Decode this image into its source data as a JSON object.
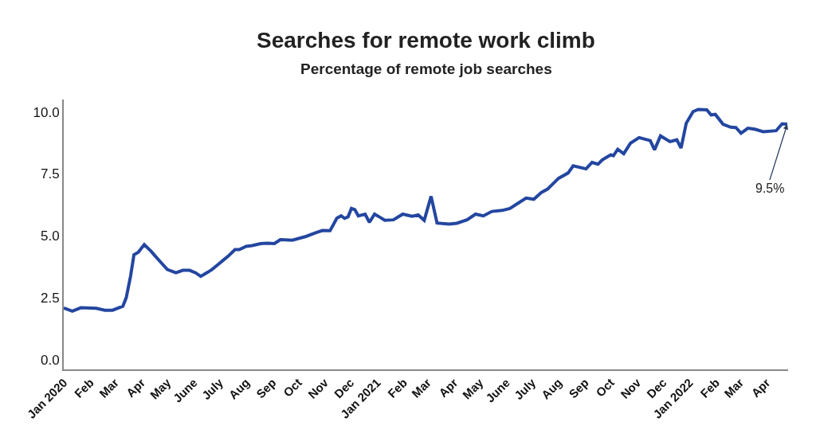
{
  "chart_data": {
    "type": "line",
    "title": "Searches for remote work climb",
    "subtitle": "Percentage of remote job searches",
    "x": [
      "2020-01-01",
      "2020-01-11",
      "2020-01-21",
      "2020-02-08",
      "2020-02-18",
      "2020-02-27",
      "2020-03-10",
      "2020-03-14",
      "2020-03-19",
      "2020-03-23",
      "2020-03-28",
      "2020-04-04",
      "2020-04-12",
      "2020-04-17",
      "2020-04-24",
      "2020-05-01",
      "2020-05-11",
      "2020-05-19",
      "2020-05-27",
      "2020-06-03",
      "2020-06-09",
      "2020-06-17",
      "2020-06-22",
      "2020-06-29",
      "2020-07-05",
      "2020-07-11",
      "2020-07-19",
      "2020-07-24",
      "2020-08-01",
      "2020-08-08",
      "2020-08-18",
      "2020-08-26",
      "2020-09-03",
      "2020-09-10",
      "2020-09-24",
      "2020-10-10",
      "2020-10-20",
      "2020-10-29",
      "2020-11-07",
      "2020-11-15",
      "2020-11-20",
      "2020-11-24",
      "2020-11-28",
      "2020-12-02",
      "2020-12-06",
      "2020-12-10",
      "2020-12-18",
      "2020-12-23",
      "2020-12-29",
      "2021-01-05",
      "2021-01-10",
      "2021-01-20",
      "2021-01-31",
      "2021-02-11",
      "2021-02-18",
      "2021-02-25",
      "2021-03-05",
      "2021-03-12",
      "2021-03-26",
      "2021-04-04",
      "2021-04-16",
      "2021-04-26",
      "2021-05-05",
      "2021-05-15",
      "2021-05-27",
      "2021-06-05",
      "2021-06-15",
      "2021-06-24",
      "2021-07-03",
      "2021-07-12",
      "2021-07-19",
      "2021-08-01",
      "2021-08-12",
      "2021-08-18",
      "2021-09-02",
      "2021-09-09",
      "2021-09-16",
      "2021-09-21",
      "2021-10-01",
      "2021-10-04",
      "2021-10-09",
      "2021-10-16",
      "2021-10-24",
      "2021-11-03",
      "2021-11-16",
      "2021-11-21",
      "2021-11-28",
      "2021-12-09",
      "2021-12-17",
      "2021-12-22",
      "2021-12-28",
      "2022-01-05",
      "2022-01-11",
      "2022-01-21",
      "2022-01-26",
      "2022-01-31",
      "2022-02-09",
      "2022-02-18",
      "2022-02-24",
      "2022-03-02",
      "2022-03-10",
      "2022-03-18",
      "2022-03-28",
      "2022-04-12",
      "2022-04-19",
      "2022-04-25"
    ],
    "series": [
      {
        "color": "#2346a0",
        "values": [
          2.08,
          1.95,
          2.09,
          2.07,
          1.99,
          1.99,
          2.15,
          2.5,
          3.36,
          4.23,
          4.33,
          4.64,
          4.37,
          4.17,
          3.9,
          3.63,
          3.5,
          3.6,
          3.6,
          3.5,
          3.36,
          3.52,
          3.63,
          3.83,
          4.0,
          4.17,
          4.44,
          4.44,
          4.57,
          4.6,
          4.68,
          4.7,
          4.68,
          4.84,
          4.82,
          4.97,
          5.1,
          5.21,
          5.2,
          5.71,
          5.8,
          5.7,
          5.76,
          6.1,
          6.05,
          5.8,
          5.87,
          5.54,
          5.87,
          5.73,
          5.62,
          5.64,
          5.87,
          5.78,
          5.84,
          5.62,
          6.59,
          5.51,
          5.47,
          5.5,
          5.64,
          5.87,
          5.8,
          5.98,
          6.02,
          6.1,
          6.32,
          6.52,
          6.47,
          6.75,
          6.88,
          7.32,
          7.53,
          7.82,
          7.7,
          7.96,
          7.89,
          8.06,
          8.27,
          8.23,
          8.49,
          8.31,
          8.74,
          8.96,
          8.84,
          8.47,
          9.03,
          8.8,
          8.87,
          8.54,
          9.54,
          10.01,
          10.1,
          10.08,
          9.88,
          9.9,
          9.5,
          9.38,
          9.37,
          9.14,
          9.34,
          9.3,
          9.2,
          9.24,
          9.52,
          9.5
        ]
      }
    ],
    "xlim": [
      "2020-01-01",
      "2022-04-26"
    ],
    "xticks": [
      {
        "value": "2020-01-01",
        "label": "Jan 2020"
      },
      {
        "value": "2020-02-01",
        "label": "Feb"
      },
      {
        "value": "2020-03-01",
        "label": "Mar"
      },
      {
        "value": "2020-04-01",
        "label": "Apr"
      },
      {
        "value": "2020-05-01",
        "label": "May"
      },
      {
        "value": "2020-06-01",
        "label": "June"
      },
      {
        "value": "2020-07-01",
        "label": "July"
      },
      {
        "value": "2020-08-01",
        "label": "Aug"
      },
      {
        "value": "2020-09-01",
        "label": "Sep"
      },
      {
        "value": "2020-10-01",
        "label": "Oct"
      },
      {
        "value": "2020-11-01",
        "label": "Nov"
      },
      {
        "value": "2020-12-01",
        "label": "Dec"
      },
      {
        "value": "2021-01-01",
        "label": "Jan 2021"
      },
      {
        "value": "2021-02-01",
        "label": "Feb"
      },
      {
        "value": "2021-03-01",
        "label": "Mar"
      },
      {
        "value": "2021-04-01",
        "label": "Apr"
      },
      {
        "value": "2021-05-01",
        "label": "May"
      },
      {
        "value": "2021-06-01",
        "label": "June"
      },
      {
        "value": "2021-07-01",
        "label": "July"
      },
      {
        "value": "2021-08-01",
        "label": "Aug"
      },
      {
        "value": "2021-09-01",
        "label": "Sep"
      },
      {
        "value": "2021-10-01",
        "label": "Oct"
      },
      {
        "value": "2021-11-01",
        "label": "Nov"
      },
      {
        "value": "2021-12-01",
        "label": "Dec"
      },
      {
        "value": "2022-01-01",
        "label": "Jan 2022"
      },
      {
        "value": "2022-02-01",
        "label": "Feb"
      },
      {
        "value": "2022-03-01",
        "label": "Mar"
      },
      {
        "value": "2022-04-01",
        "label": "Apr"
      }
    ],
    "ylim": [
      -0.4,
      10.5
    ],
    "yticks": [
      {
        "value": 0,
        "label": "0.0"
      },
      {
        "value": 2.5,
        "label": "2.5"
      },
      {
        "value": 5,
        "label": "5.0"
      },
      {
        "value": 7.5,
        "label": "7.5"
      },
      {
        "value": 10,
        "label": "10.0"
      }
    ],
    "marker": "none",
    "line_style": "solid",
    "annotations": [
      {
        "text": "9.5%",
        "x": "2022-04-25",
        "y": 9.5
      }
    ]
  }
}
